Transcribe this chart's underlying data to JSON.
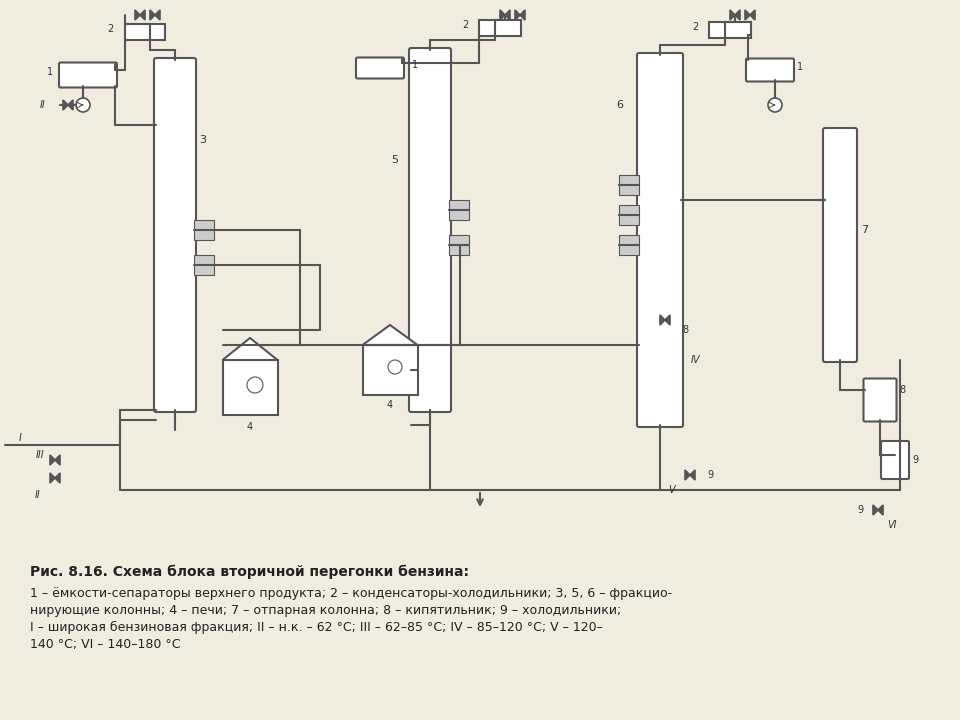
{
  "title": "Рис. 8.16. Схема блока вторичной перегонки бензина:",
  "caption_lines": [
    "1 – ёмкости-сепараторы верхнего продукта; 2 – конденсаторы-холодильники; 3, 5, 6 – фракцио-",
    "нирующие колонны; 4 – печи; 7 – отпарная колонна; 8 – кипятильник; 9 – холодильники;",
    "I – широкая бензиновая фракция; II – н.к. – 62 °С; III – 62–85 °С; IV – 85–120 °С; V – 120–",
    "140 °С; VI – 140–180 °С"
  ],
  "bg_color": "#f0ece0",
  "line_color": "#555555",
  "equipment_fill": "#ffffff",
  "equipment_edge": "#555555",
  "text_color": "#222222",
  "font_size": 9,
  "title_font_size": 10
}
